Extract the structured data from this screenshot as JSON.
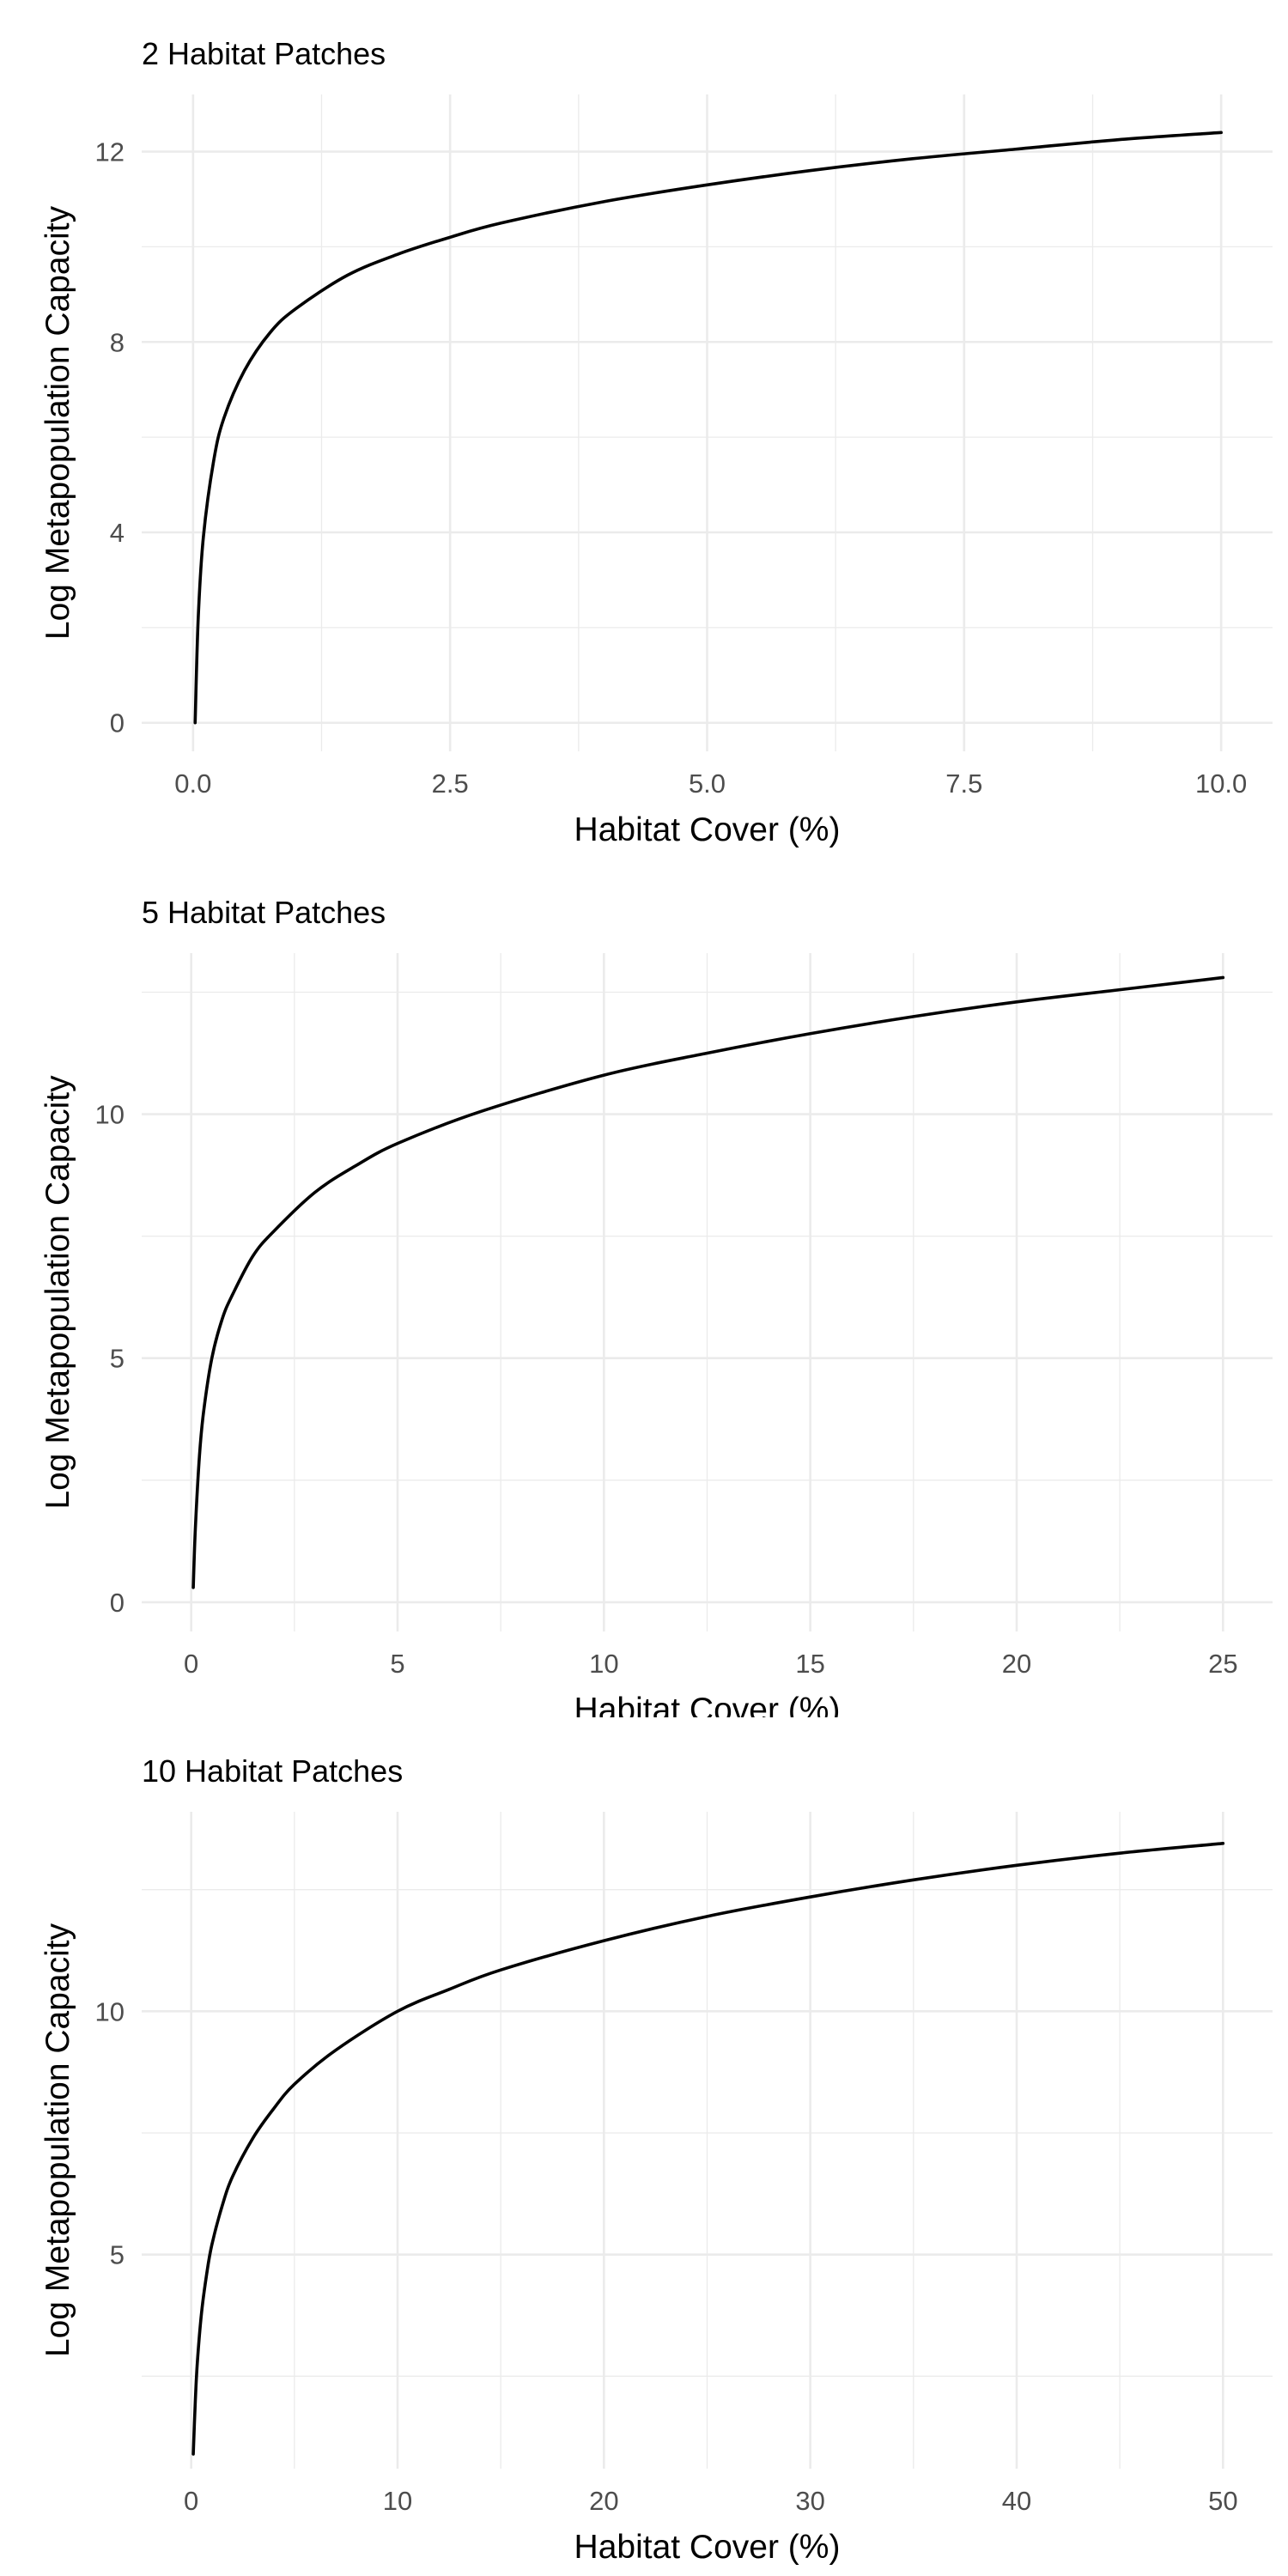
{
  "chart_data": [
    {
      "type": "line",
      "title": "2 Habitat Patches",
      "xlabel": "Habitat Cover (%)",
      "ylabel": "Log Metapopulation Capacity",
      "xlim": [
        -0.5,
        10.5
      ],
      "ylim": [
        -0.6,
        13.2
      ],
      "x_major_ticks": [
        0,
        2.5,
        5,
        7.5,
        10
      ],
      "x_tick_labels": [
        "0.0",
        "2.5",
        "5.0",
        "7.5",
        "10.0"
      ],
      "x_minor_ticks": [
        1.25,
        3.75,
        6.25,
        8.75
      ],
      "y_major_ticks": [
        0,
        4,
        8,
        12
      ],
      "y_tick_labels": [
        "0",
        "4",
        "8",
        "12"
      ],
      "y_minor_ticks": [
        2,
        6,
        10
      ],
      "grid": true,
      "series": [
        {
          "x": [
            0.02,
            0.05,
            0.1,
            0.2,
            0.3,
            0.5,
            0.75,
            1,
            1.5,
            2,
            2.5,
            3,
            4,
            5,
            6,
            7,
            8,
            9,
            10
          ],
          "y": [
            0.0,
            2.2,
            3.9,
            5.5,
            6.4,
            7.4,
            8.2,
            8.7,
            9.4,
            9.85,
            10.2,
            10.5,
            10.95,
            11.3,
            11.6,
            11.85,
            12.05,
            12.25,
            12.4
          ]
        }
      ]
    },
    {
      "type": "line",
      "title": "5 Habitat Patches",
      "xlabel": "Habitat Cover (%)",
      "ylabel": "Log Metapopulation Capacity",
      "xlim": [
        -1.2,
        26.2
      ],
      "ylim": [
        -0.6,
        13.3
      ],
      "x_major_ticks": [
        0,
        5,
        10,
        15,
        20,
        25
      ],
      "x_tick_labels": [
        "0",
        "5",
        "10",
        "15",
        "20",
        "25"
      ],
      "x_minor_ticks": [
        2.5,
        7.5,
        12.5,
        17.5,
        22.5
      ],
      "y_major_ticks": [
        0,
        5,
        10
      ],
      "y_tick_labels": [
        "0",
        "5",
        "10"
      ],
      "y_minor_ticks": [
        2.5,
        7.5,
        12.5
      ],
      "grid": true,
      "series": [
        {
          "x": [
            0.05,
            0.1,
            0.2,
            0.3,
            0.5,
            0.75,
            1,
            1.5,
            2,
            3,
            4,
            5,
            7,
            10,
            12.5,
            15,
            17.5,
            20,
            22.5,
            25
          ],
          "y": [
            0.3,
            1.5,
            3.0,
            3.9,
            5.0,
            5.8,
            6.3,
            7.1,
            7.6,
            8.4,
            8.95,
            9.4,
            10.05,
            10.8,
            11.25,
            11.65,
            12.0,
            12.3,
            12.55,
            12.8
          ]
        }
      ]
    },
    {
      "type": "line",
      "title": "10 Habitat Patches",
      "xlabel": "Habitat Cover (%)",
      "ylabel": "Log Metapopulation Capacity",
      "xlim": [
        -2.4,
        52.4
      ],
      "ylim": [
        0.6,
        14.1
      ],
      "x_major_ticks": [
        0,
        10,
        20,
        30,
        40,
        50
      ],
      "x_tick_labels": [
        "0",
        "10",
        "20",
        "30",
        "40",
        "50"
      ],
      "x_minor_ticks": [
        5,
        15,
        25,
        35,
        45
      ],
      "y_major_ticks": [
        5,
        10
      ],
      "y_tick_labels": [
        "5",
        "10"
      ],
      "y_minor_ticks": [
        2.5,
        7.5,
        12.5
      ],
      "grid": true,
      "series": [
        {
          "x": [
            0.1,
            0.2,
            0.3,
            0.5,
            0.75,
            1,
            1.5,
            2,
            3,
            4,
            5,
            7,
            10,
            12.5,
            15,
            20,
            25,
            30,
            35,
            40,
            45,
            50
          ],
          "y": [
            0.9,
            2.0,
            2.8,
            3.8,
            4.6,
            5.2,
            6.0,
            6.6,
            7.4,
            8.0,
            8.5,
            9.2,
            10.0,
            10.45,
            10.85,
            11.45,
            11.95,
            12.35,
            12.7,
            13.0,
            13.25,
            13.45
          ]
        }
      ]
    }
  ]
}
